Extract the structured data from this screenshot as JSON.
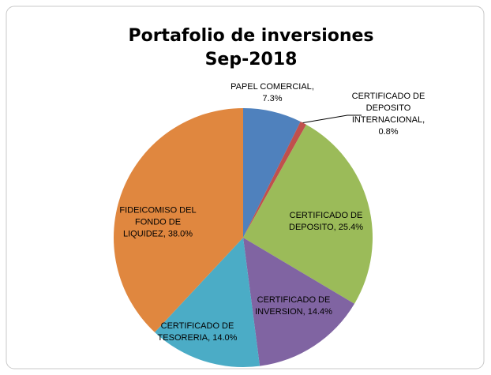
{
  "chart_data": {
    "type": "pie",
    "title": "Portafolio de inversiones",
    "subtitle": "Sep-2018",
    "categories": [
      "PAPEL COMERCIAL",
      "CERTIFICADO DE DEPOSITO INTERNACIONAL",
      "CERTIFICADO DE DEPOSITO",
      "CERTIFICADO DE INVERSION",
      "CERTIFICADO DE TESORERIA",
      "FIDEICOMISO DEL FONDO DE LIQUIDEZ"
    ],
    "values": [
      7.3,
      0.8,
      25.4,
      14.4,
      14.0,
      38.0
    ],
    "value_labels": [
      "7.3%",
      "0.8%",
      "25.4%",
      "14.4%",
      "14.0%",
      "38.0%"
    ],
    "label_separator": ",",
    "colors": [
      "#4f81bd",
      "#c0504d",
      "#9bbb59",
      "#8064a2",
      "#4bacc6",
      "#e0873f"
    ]
  }
}
